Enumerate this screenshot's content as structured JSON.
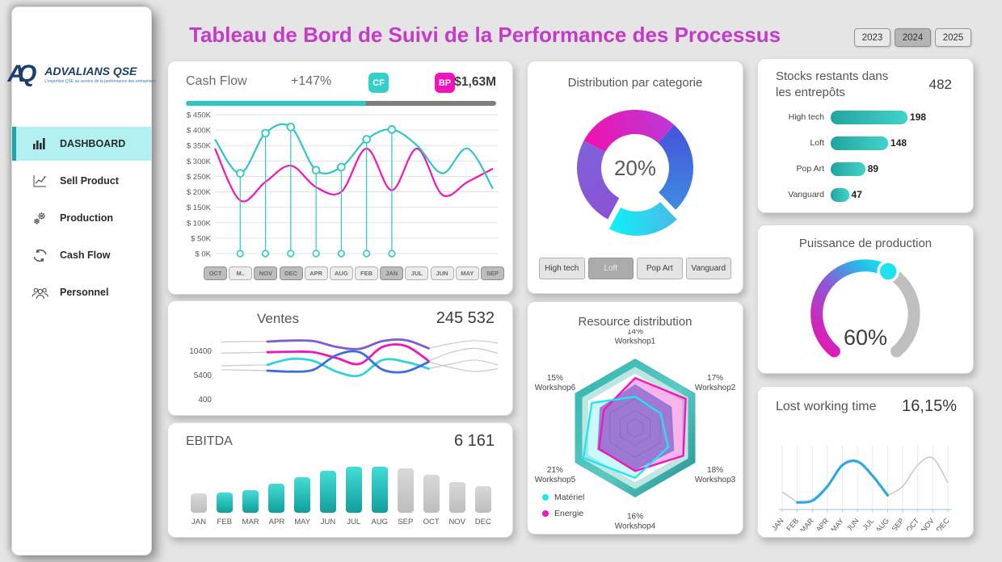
{
  "page": {
    "title": "Tableau de Bord de Suivi de la Performance des Processus"
  },
  "theme": {
    "teal": "#2fc7c3",
    "magenta": "#ee17b8",
    "purple": "#8655d4",
    "blue": "#3f6cdb",
    "light_blue": "#2da9e1",
    "title_color": "#c43bc9",
    "navy": "#1c3e6e"
  },
  "years": [
    {
      "label": "2023",
      "selected": false
    },
    {
      "label": "2024",
      "selected": true
    },
    {
      "label": "2025",
      "selected": false
    }
  ],
  "sidebar": {
    "logo": {
      "monogram": "AQ",
      "brand": "ADVALIANS QSE",
      "tagline": "L'expertise QSE au service de la performance des entreprises"
    },
    "items": [
      {
        "label": "DASHBOARD",
        "icon": "bar-chart-icon",
        "active": true
      },
      {
        "label": "Sell Product",
        "icon": "line-chart-icon",
        "active": false
      },
      {
        "label": "Production",
        "icon": "gears-icon",
        "active": false
      },
      {
        "label": "Cash Flow",
        "icon": "cycle-arrows-icon",
        "active": false
      },
      {
        "label": "Personnel",
        "icon": "people-icon",
        "active": false
      }
    ]
  },
  "cards": {
    "cash_flow": {
      "title": "Cash Flow",
      "change": "+147%",
      "cf_badge": "CF",
      "bp_badge": "BP",
      "amount": "$1,63M",
      "progress_pct": 58,
      "chart_data": {
        "type": "line",
        "unit": "$K",
        "ylim": [
          0,
          450
        ],
        "categories": [
          "OCT",
          "M..",
          "NOV",
          "DEC",
          "APR",
          "AUG",
          "FEB",
          "JAN",
          "JUL",
          "JUN",
          "MAY",
          "SEP"
        ],
        "selected_categories": [
          "OCT",
          "NOV",
          "DEC",
          "JAN",
          "SEP"
        ],
        "y_ticks": [
          "$ 450K",
          "$ 400K",
          "$ 350K",
          "$ 300K",
          "$ 250K",
          "$ 200K",
          "$ 150K",
          "$ 100K",
          "$ 50K",
          "$ 0K"
        ],
        "series": [
          {
            "name": "BP",
            "color": "#ee17b8",
            "values": [
              340,
              172,
              232,
              285,
              215,
              200,
              340,
              205,
              340,
              190,
              232,
              275
            ]
          },
          {
            "name": "CF",
            "color": "#2fc7c3",
            "values": [
              370,
              260,
              390,
              410,
              270,
              280,
              370,
              402,
              350,
              260,
              340,
              210
            ],
            "marker_indices": [
              1,
              2,
              3,
              4,
              5,
              6,
              7
            ]
          }
        ]
      }
    },
    "distribution": {
      "title": "Distribution par categorie",
      "center_label": "20%",
      "buttons": [
        {
          "label": "High tech",
          "selected": false
        },
        {
          "label": "Loft",
          "selected": true
        },
        {
          "label": "Pop Art",
          "selected": false
        },
        {
          "label": "Vanguard",
          "selected": false
        }
      ],
      "chart_data": {
        "type": "pie",
        "donut": true,
        "start_angle_deg": -62,
        "slices": [
          {
            "label": "High tech",
            "pct": 29,
            "colors": [
              "#f011ae",
              "#b93ad6"
            ],
            "exploded": false
          },
          {
            "label": "Pop Art",
            "pct": 26,
            "colors": [
              "#4553da",
              "#3f8ce2"
            ],
            "exploded": false
          },
          {
            "label": "Loft",
            "pct": 20,
            "colors": [
              "#49b9e8",
              "#0ef2f8"
            ],
            "exploded": true
          },
          {
            "label": "Vanguard",
            "pct": 25,
            "colors": [
              "#8b51d6",
              "#7e63d8"
            ],
            "exploded": false
          }
        ]
      }
    },
    "stocks": {
      "title": "Stocks restants dans les entrepôts",
      "total": "482",
      "chart_data": {
        "type": "bar",
        "orientation": "horizontal",
        "categories": [
          "High tech",
          "Loft",
          "Pop Art",
          "Vanguard"
        ],
        "values": [
          198,
          148,
          89,
          47
        ],
        "xlim": [
          0,
          210
        ]
      }
    },
    "puissance": {
      "title": "Puissance de production",
      "value_label": "60%",
      "chart_data": {
        "type": "gauge",
        "value_pct": 60,
        "sweep_deg": 280,
        "gradient": [
          "#f00fb0",
          "#9055d5",
          "#28b9e8",
          "#12e9f2"
        ],
        "rest_color": "#bfbfbf"
      }
    },
    "ventes": {
      "title": "Ventes",
      "value": "245 532",
      "chart_data": {
        "type": "line",
        "y_ticks": [
          "10400",
          "5400",
          "400"
        ],
        "ylim": [
          400,
          15400
        ],
        "colored_range": [
          2,
          9
        ],
        "series": [
          {
            "name": "serie-violette",
            "color": "#7c5cd6",
            "values": [
              12300,
              12400,
              12400,
              12600,
              12500,
              11300,
              10900,
              12500,
              12700,
              11000,
              12000,
              12600,
              12100
            ]
          },
          {
            "name": "serie-magenta",
            "color": "#ee17b8",
            "values": [
              10000,
              10100,
              10200,
              10300,
              10200,
              9000,
              7800,
              11300,
              11500,
              8400,
              10200,
              11000,
              10000
            ]
          },
          {
            "name": "serie-cyan",
            "color": "#2fd4d4",
            "values": [
              7400,
              7500,
              7600,
              8800,
              8400,
              6200,
              5400,
              8600,
              8200,
              6800,
              7800,
              8600,
              7600
            ]
          },
          {
            "name": "serie-bleue",
            "color": "#3f6cdb",
            "values": [
              6600,
              6500,
              6400,
              6200,
              6600,
              9600,
              10200,
              6600,
              6200,
              8200,
              7000,
              6200,
              6800
            ]
          }
        ]
      }
    },
    "resource": {
      "title": "Resource distribution",
      "legend": [
        {
          "label": "Matériel",
          "color": "#19e8f2"
        },
        {
          "label": "Energie",
          "color": "#ee17b8"
        }
      ],
      "chart_data": {
        "type": "radar",
        "axes": [
          {
            "pct": "14%",
            "name": "Workshop1"
          },
          {
            "pct": "17%",
            "name": "Workshop2"
          },
          {
            "pct": "18%",
            "name": "Workshop3"
          },
          {
            "pct": "16%",
            "name": "Workshop4"
          },
          {
            "pct": "21%",
            "name": "Workshop5"
          },
          {
            "pct": "15%",
            "name": "Workshop6"
          }
        ],
        "series": [
          {
            "name": "Energie",
            "color": "#f515bc",
            "fill": "rgba(240,70,200,0.40)",
            "values": [
              0.72,
              0.84,
              0.8,
              0.62,
              0.6,
              0.52
            ]
          },
          {
            "name": "Matériel",
            "color": "#22e6ef",
            "fill": "rgba(80,235,245,0.30)",
            "values": [
              0.45,
              0.42,
              0.55,
              0.72,
              0.86,
              0.72
            ]
          }
        ]
      }
    },
    "ebitda": {
      "title": "EBITDA",
      "value": "6 161",
      "chart_data": {
        "type": "bar",
        "categories": [
          "JAN",
          "FEB",
          "MAR",
          "APR",
          "MAY",
          "JUN",
          "JUL",
          "AUG",
          "SEP",
          "OCT",
          "NOV",
          "DEC"
        ],
        "values": [
          24,
          25,
          28,
          36,
          44,
          52,
          57,
          57,
          55,
          47,
          38,
          33
        ],
        "highlighted": [
          "FEB",
          "MAR",
          "APR",
          "MAY",
          "JUN",
          "JUL",
          "AUG"
        ]
      }
    },
    "lost": {
      "title": "Lost working time",
      "value": "16,15%",
      "chart_data": {
        "type": "line",
        "color": "#2da9e1",
        "gray_color": "#c4c4c4",
        "colored_range": [
          1,
          7
        ],
        "categories": [
          "JAN",
          "FEB",
          "MAR",
          "APR",
          "MAY",
          "JUN",
          "JUL",
          "AUG",
          "SEP",
          "OCT",
          "NOV",
          "DEC"
        ],
        "values": [
          5.4,
          4.8,
          4.9,
          5.7,
          6.9,
          7.1,
          6.3,
          5.2,
          5.7,
          6.9,
          7.3,
          5.9
        ]
      }
    }
  }
}
